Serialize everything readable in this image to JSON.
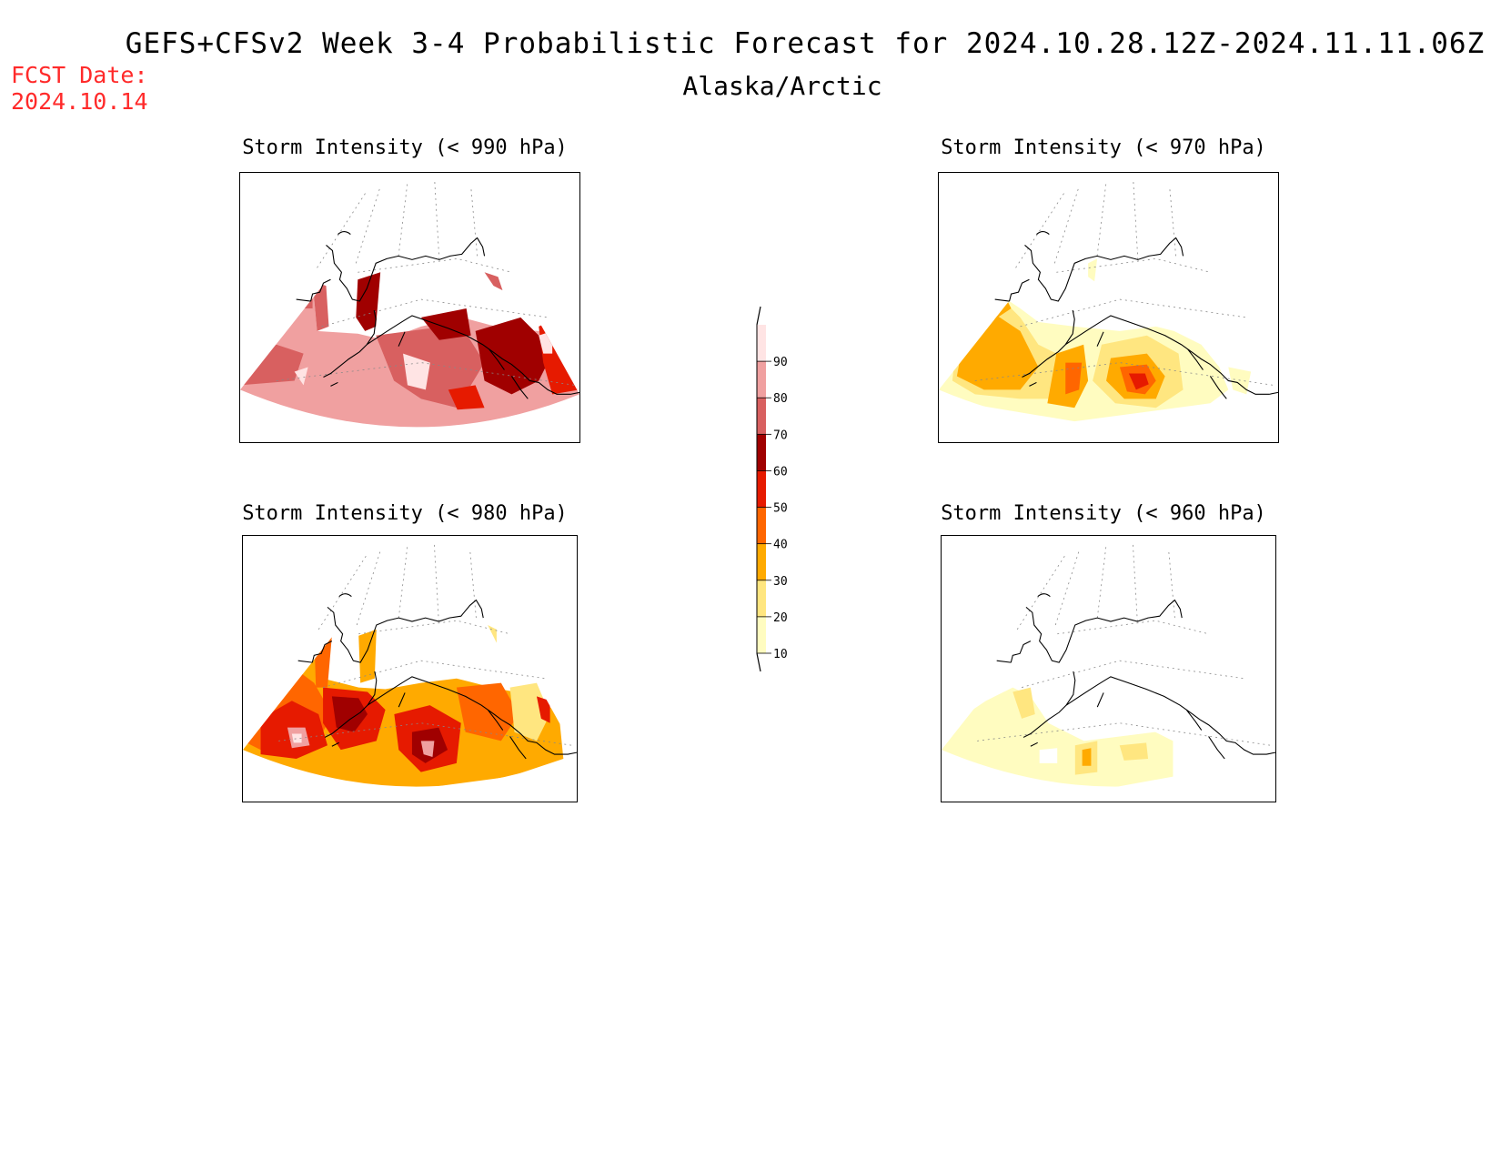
{
  "header": {
    "title": "GEFS+CFSv2 Week 3-4 Probabilistic Forecast for 2024.10.28.12Z-2024.11.11.06Z",
    "subtitle": "Alaska/Arctic",
    "fcst_label": "FCST Date:",
    "fcst_date": "2024.10.14"
  },
  "panels": [
    {
      "id": "p990",
      "title": "Storm Intensity (< 990 hPa)"
    },
    {
      "id": "p970",
      "title": "Storm Intensity (< 970 hPa)"
    },
    {
      "id": "p980",
      "title": "Storm Intensity (< 980 hPa)"
    },
    {
      "id": "p960",
      "title": "Storm Intensity (< 960 hPa)"
    }
  ],
  "legend": {
    "levels": [
      "10",
      "20",
      "30",
      "40",
      "50",
      "60",
      "70",
      "80",
      "90"
    ],
    "colors": [
      "#fffcc0",
      "#ffe680",
      "#ffaa00",
      "#ff6600",
      "#e61a00",
      "#a00000",
      "#d86060",
      "#f0a0a0",
      "#ffe4e4"
    ]
  }
}
